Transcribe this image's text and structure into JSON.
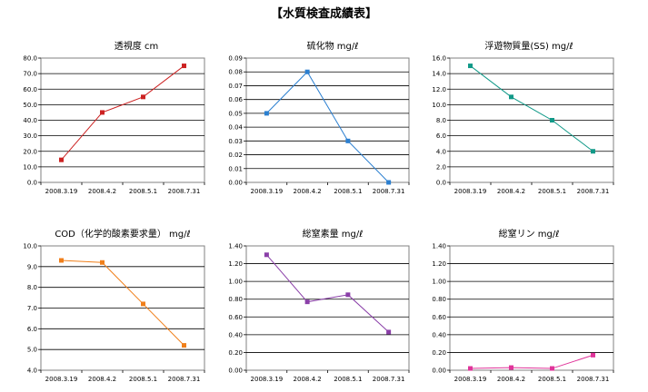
{
  "page_title": "【水質検査成績表】",
  "chart_data": [
    {
      "type": "line",
      "title": "透視度 cm",
      "categories": [
        "2008.3.19",
        "2008.4.2",
        "2008.5.1",
        "2008.7.31"
      ],
      "series": [
        {
          "values": [
            14.5,
            45,
            55,
            75
          ]
        }
      ],
      "ylim": [
        0,
        80
      ],
      "ytick_step": 10,
      "ytick_decimals": 1,
      "grid": true,
      "color": "#cc2222"
    },
    {
      "type": "line",
      "title": "硫化物 mg/ℓ",
      "categories": [
        "2008.3.19",
        "2008.4.2",
        "2008.5.1",
        "2008.7.31"
      ],
      "series": [
        {
          "values": [
            0.05,
            0.08,
            0.03,
            0.0
          ]
        }
      ],
      "ylim": [
        0,
        0.09
      ],
      "ytick_step": 0.01,
      "ytick_decimals": 2,
      "grid": true,
      "color": "#2b7fd0"
    },
    {
      "type": "line",
      "title": "浮遊物質量(SS) mg/ℓ",
      "categories": [
        "2008.3.19",
        "2008.4.2",
        "2008.5.1",
        "2008.7.31"
      ],
      "series": [
        {
          "values": [
            15,
            11,
            8,
            4
          ]
        }
      ],
      "ylim": [
        0,
        16
      ],
      "ytick_step": 2,
      "ytick_decimals": 1,
      "grid": true,
      "color": "#119988"
    },
    {
      "type": "line",
      "title": "COD（化学的酸素要求量） mg/ℓ",
      "categories": [
        "2008.3.19",
        "2008.4.2",
        "2008.5.1",
        "2008.7.31"
      ],
      "series": [
        {
          "values": [
            9.3,
            9.2,
            7.2,
            5.2
          ]
        }
      ],
      "ylim": [
        4,
        10
      ],
      "ytick_step": 1,
      "ytick_decimals": 1,
      "grid": true,
      "color": "#f07f1a"
    },
    {
      "type": "line",
      "title": "総窒素量 mg/ℓ",
      "categories": [
        "2008.3.19",
        "2008.4.2",
        "2008.5.1",
        "2008.7.31"
      ],
      "series": [
        {
          "values": [
            1.3,
            0.77,
            0.85,
            0.43
          ]
        }
      ],
      "ylim": [
        0,
        1.4
      ],
      "ytick_step": 0.2,
      "ytick_decimals": 2,
      "grid": true,
      "color": "#8a3fa8"
    },
    {
      "type": "line",
      "title": "総窒リン mg/ℓ",
      "categories": [
        "2008.3.19",
        "2008.4.2",
        "2008.5.1",
        "2008.7.31"
      ],
      "series": [
        {
          "values": [
            0.02,
            0.03,
            0.02,
            0.17
          ]
        }
      ],
      "ylim": [
        0,
        1.4
      ],
      "ytick_step": 0.2,
      "ytick_decimals": 2,
      "grid": true,
      "color": "#e0349a"
    }
  ]
}
